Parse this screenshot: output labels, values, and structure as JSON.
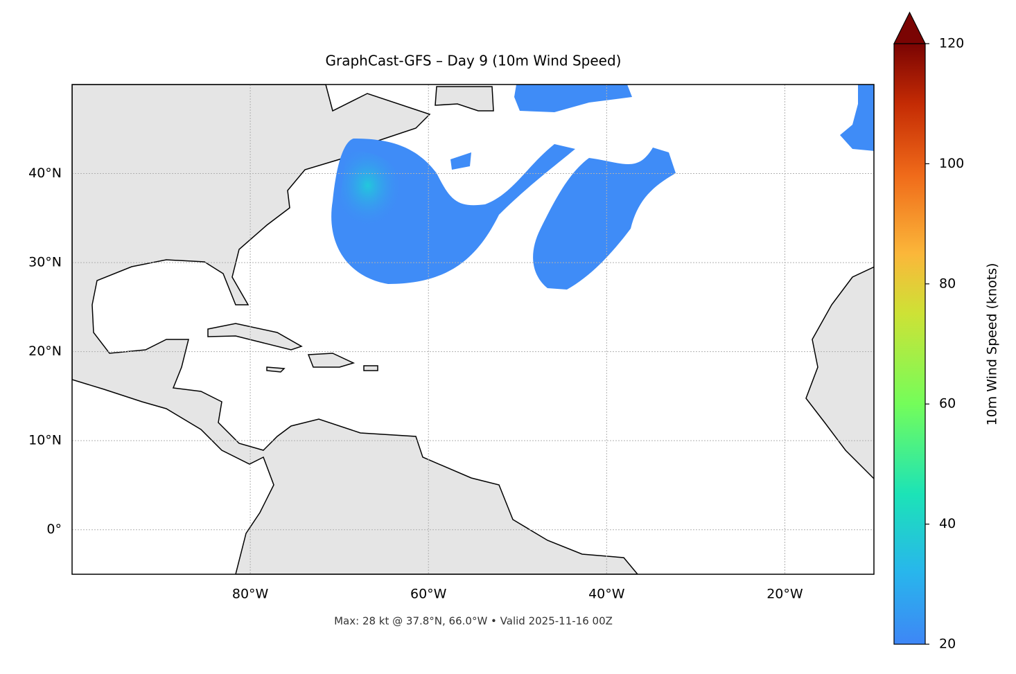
{
  "chart_data": {
    "type": "map",
    "title": "GraphCast-GFS – Day 9 (10m Wind Speed)",
    "subtitle": "Max: 28 kt @ 37.8°N, 66.0°W • Valid 2025-11-16 00Z",
    "xlim": [
      -100,
      -10
    ],
    "ylim": [
      -5,
      50
    ],
    "xticks": [
      {
        "value": -80,
        "label": "80°W"
      },
      {
        "value": -60,
        "label": "60°W"
      },
      {
        "value": -40,
        "label": "40°W"
      },
      {
        "value": -20,
        "label": "20°W"
      }
    ],
    "yticks": [
      {
        "value": 0,
        "label": "0°"
      },
      {
        "value": 10,
        "label": "10°N"
      },
      {
        "value": 20,
        "label": "20°N"
      },
      {
        "value": 30,
        "label": "30°N"
      },
      {
        "value": 40,
        "label": "40°N"
      }
    ],
    "grid": true,
    "colorbar": {
      "label": "10m Wind Speed (knots)",
      "lim": [
        20,
        120
      ],
      "ticks": [
        20,
        40,
        60,
        80,
        100,
        120
      ],
      "extend": "max"
    }
  }
}
